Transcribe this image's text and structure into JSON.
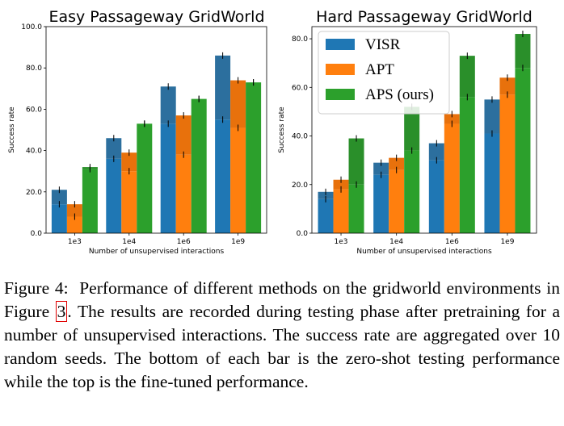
{
  "caption": {
    "label": "Figure 4:",
    "text_before_ref": "Performance of different methods on the gridworld environments in Figure ",
    "ref": "3",
    "text_after_ref": ". The results are recorded during testing phase after pretraining for a number of unsupervised interactions. The success rate are aggregated over 10 random seeds. The bottom of each bar is the zero-shot testing performance while the top is the fine-tuned performance."
  },
  "colors": {
    "VISR_light": "#1f77b4",
    "VISR_dark": "#2c6f9e",
    "APT_light": "#ff7f0e",
    "APT_dark": "#e8710c",
    "APS_light": "#2ca02c",
    "APS_dark": "#2a8f2a"
  },
  "chart_data": [
    {
      "type": "bar",
      "title": "Easy Passageway GridWorld",
      "xlabel": "Number of unsupervised interactions",
      "ylabel": "Success rate",
      "categories": [
        "1e3",
        "1e4",
        "1e6",
        "1e9"
      ],
      "ylim": [
        0,
        100
      ],
      "yticks": [
        "0.0",
        "20.0",
        "40.0",
        "60.0",
        "80.0",
        "100.0"
      ],
      "legend": null,
      "series": [
        {
          "name": "VISR",
          "zero_shot": [
            14,
            36,
            53,
            55
          ],
          "fine_tuned": [
            21,
            46,
            71,
            86
          ]
        },
        {
          "name": "APT",
          "zero_shot": [
            8,
            30,
            38,
            51
          ],
          "fine_tuned": [
            14,
            39,
            57,
            74
          ]
        },
        {
          "name": "APS (ours)",
          "zero_shot": [
            32,
            53,
            65,
            73
          ],
          "fine_tuned": [
            31,
            53,
            65,
            73
          ]
        }
      ],
      "vorce": null
    },
    {
      "type": "bar",
      "title": "Hard Passageway GridWorld",
      "xlabel": "Number of unsupervised interactions",
      "ylabel": "Success rate",
      "categories": [
        "1e3",
        "1e4",
        "1e6",
        "1e9"
      ],
      "ylim": [
        0,
        85
      ],
      "yticks": [
        "0.0",
        "20.0",
        "40.0",
        "60.0",
        "80.0"
      ],
      "legend": "top-left",
      "series": [
        {
          "name": "VISR",
          "zero_shot": [
            14,
            24,
            30,
            41
          ],
          "fine_tuned": [
            17,
            29,
            37,
            55
          ]
        },
        {
          "name": "APT",
          "zero_shot": [
            18,
            26,
            45,
            57
          ],
          "fine_tuned": [
            22,
            31,
            49,
            64
          ]
        },
        {
          "name": "APS (ours)",
          "zero_shot": [
            20,
            34,
            56,
            68
          ],
          "fine_tuned": [
            39,
            52,
            73,
            82
          ]
        }
      ]
    }
  ]
}
